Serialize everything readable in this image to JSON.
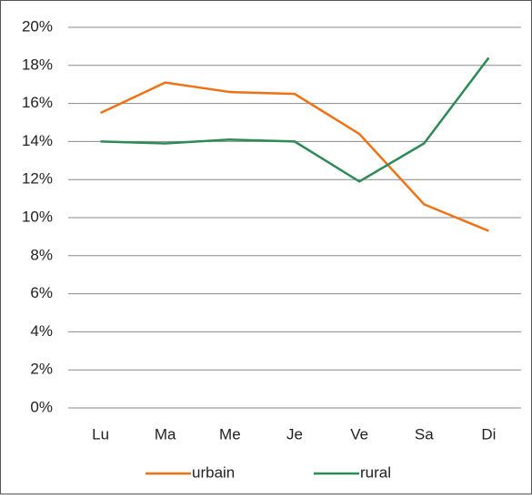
{
  "chart_data": {
    "type": "line",
    "categories": [
      "Lu",
      "Ma",
      "Me",
      "Je",
      "Ve",
      "Sa",
      "Di"
    ],
    "series": [
      {
        "name": "urbain",
        "color": "#f07113",
        "values": [
          15.5,
          17.1,
          16.6,
          16.5,
          14.4,
          10.7,
          9.3
        ]
      },
      {
        "name": "rural",
        "color": "#2e8b57",
        "values": [
          14.0,
          13.9,
          14.1,
          14.0,
          11.9,
          13.9,
          18.4
        ]
      }
    ],
    "ylim": [
      0,
      20
    ],
    "yticks": [
      {
        "value": 0,
        "label": "0%"
      },
      {
        "value": 2,
        "label": "2%"
      },
      {
        "value": 4,
        "label": "4%"
      },
      {
        "value": 6,
        "label": "6%"
      },
      {
        "value": 8,
        "label": "8%"
      },
      {
        "value": 10,
        "label": "10%"
      },
      {
        "value": 12,
        "label": "12%"
      },
      {
        "value": 14,
        "label": "14%"
      },
      {
        "value": 16,
        "label": "16%"
      },
      {
        "value": 18,
        "label": "18%"
      },
      {
        "value": 20,
        "label": "20%"
      }
    ],
    "grid": true,
    "legend": "bottom"
  }
}
